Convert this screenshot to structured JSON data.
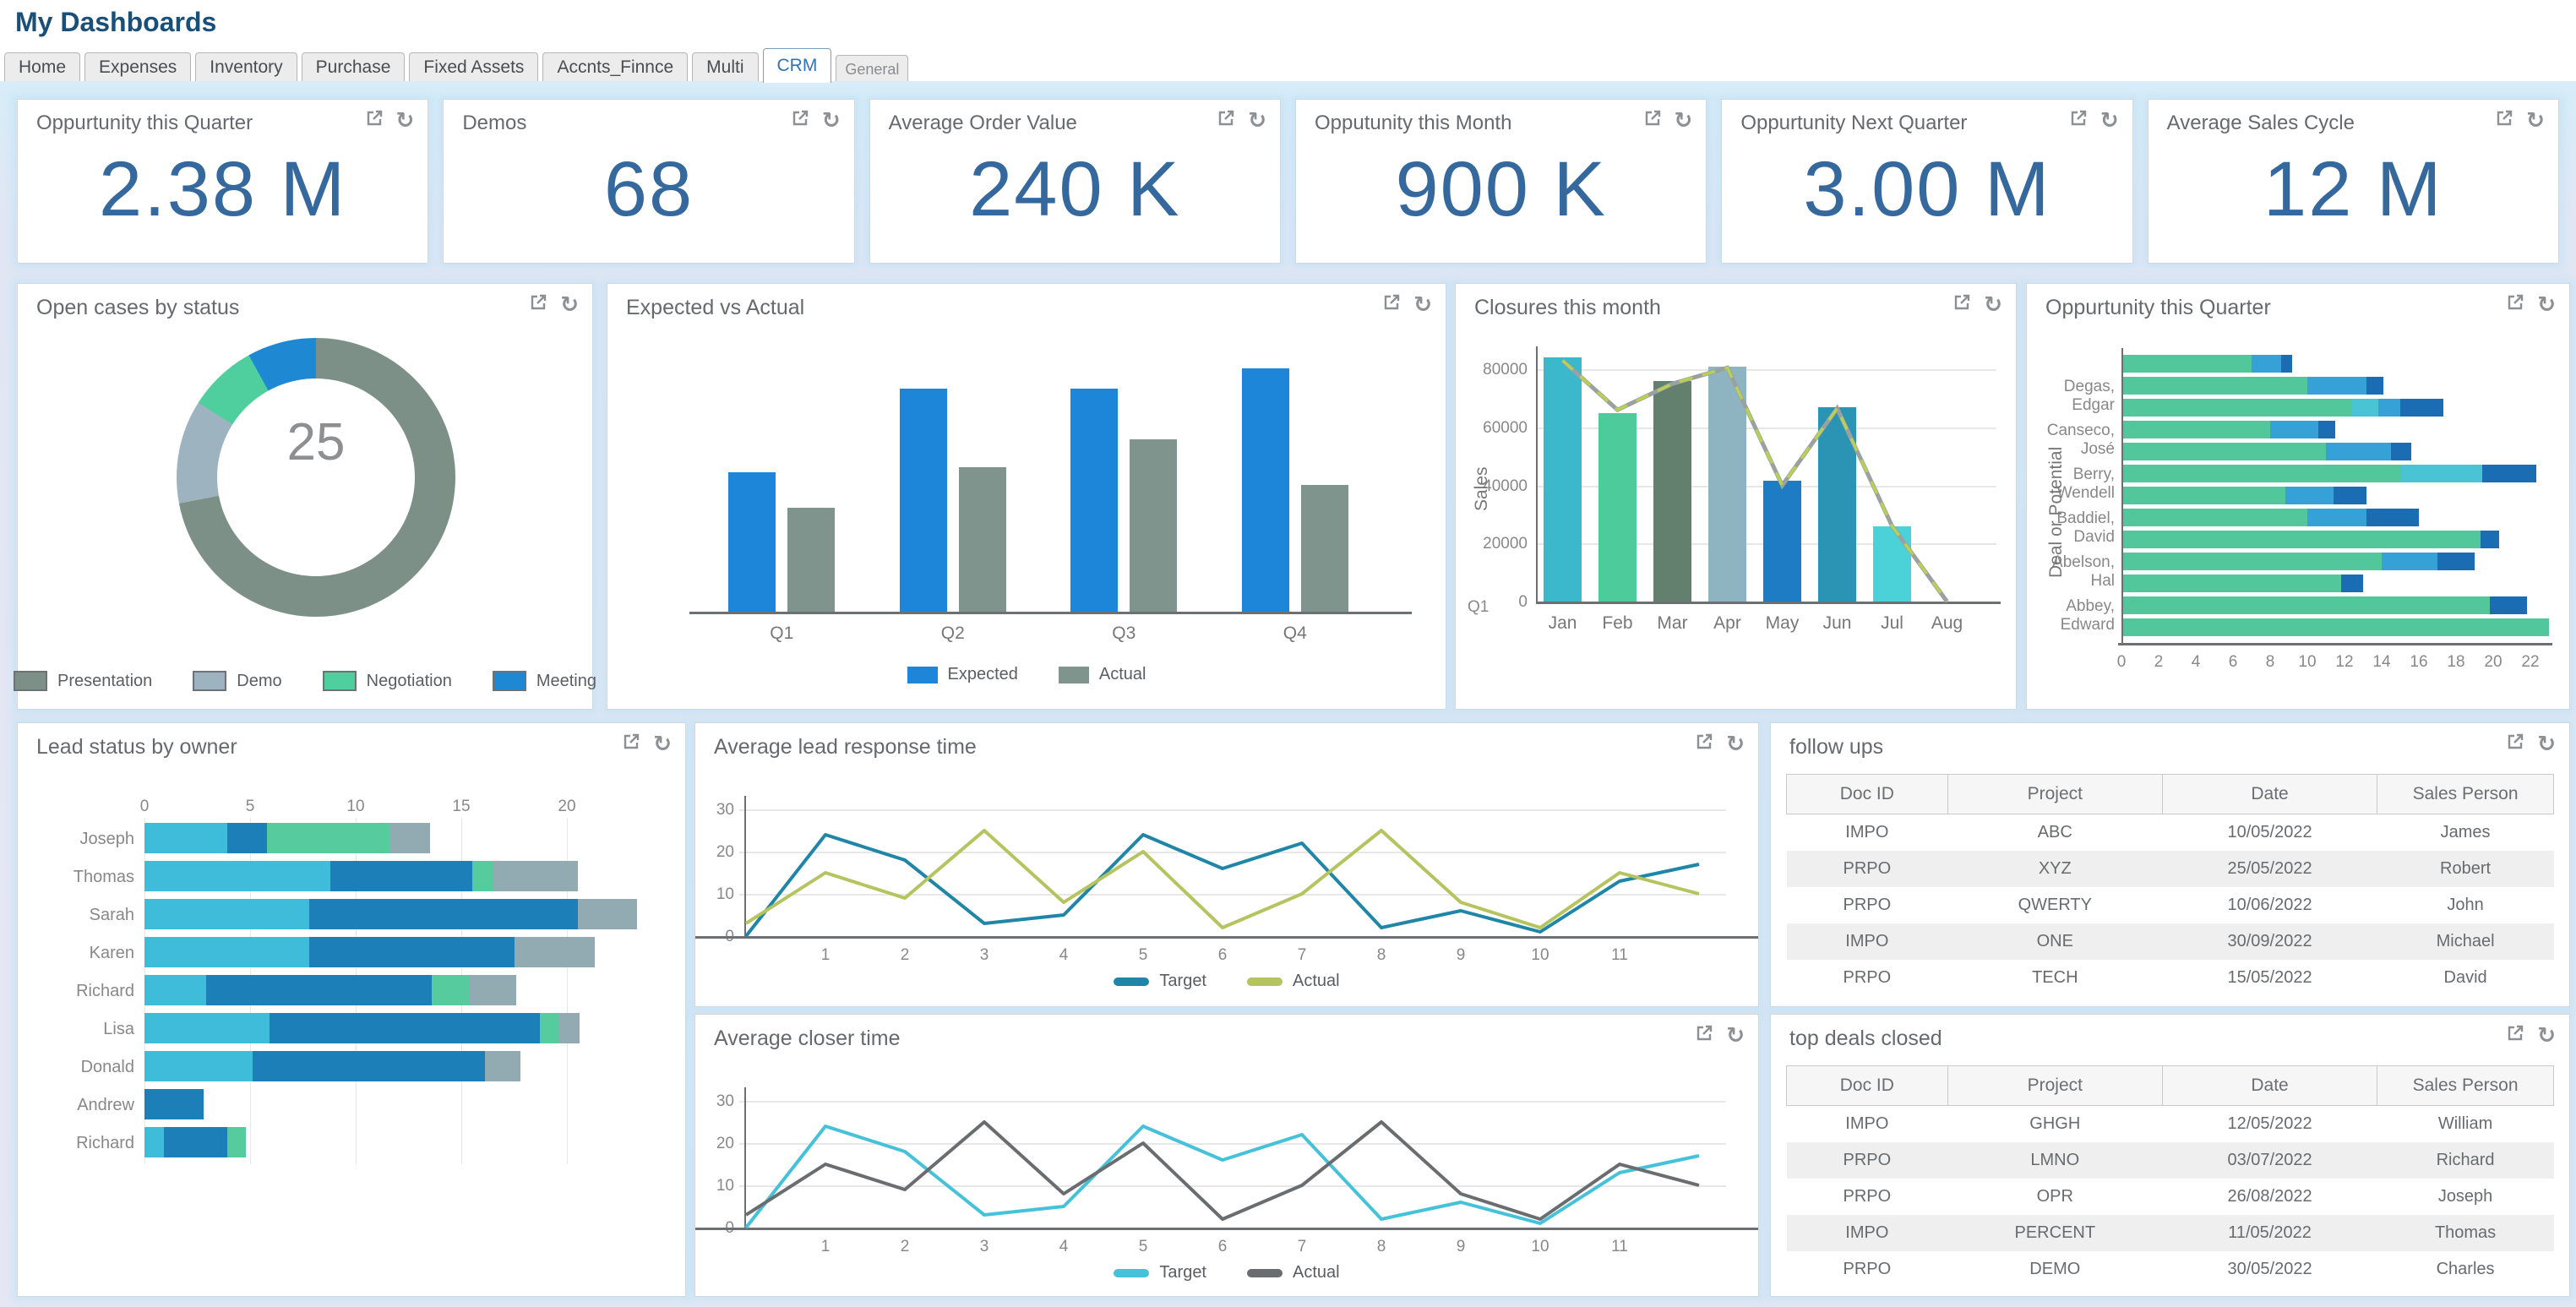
{
  "app": {
    "title": "My Dashboards"
  },
  "tabs": {
    "items": [
      {
        "label": "Home",
        "active": false
      },
      {
        "label": "Expenses",
        "active": false
      },
      {
        "label": "Inventory",
        "active": false
      },
      {
        "label": "Purchase",
        "active": false
      },
      {
        "label": "Fixed Assets",
        "active": false
      },
      {
        "label": "Accnts_Finnce",
        "active": false
      },
      {
        "label": "Multi",
        "active": false
      },
      {
        "label": "CRM",
        "active": true
      },
      {
        "label": "General",
        "active": false,
        "small": true
      }
    ]
  },
  "kpis": [
    {
      "title": "Oppurtunity this Quarter",
      "value": "2.38 M"
    },
    {
      "title": "Demos",
      "value": "68"
    },
    {
      "title": "Average Order Value",
      "value": "240 K"
    },
    {
      "title": "Opputunity this Month",
      "value": "900 K"
    },
    {
      "title": "Oppurtunity Next Quarter",
      "value": "3.00 M"
    },
    {
      "title": "Average Sales Cycle",
      "value": "12 M"
    }
  ],
  "panels": {
    "open_cases": {
      "title": "Open cases by status",
      "center_value": "25",
      "chart_data": {
        "type": "pie",
        "labels": [
          "Presentation",
          "Demo",
          "Negotiation",
          "Meeting"
        ],
        "values": [
          18,
          3,
          2,
          2
        ],
        "colors": [
          "#7c9088",
          "#9db4c0",
          "#4fcf9e",
          "#1e88d2"
        ],
        "total": 25,
        "legend_position": "bottom"
      }
    },
    "expected_vs_actual": {
      "title": "Expected vs Actual",
      "chart_data": {
        "type": "bar",
        "categories": [
          "Q1",
          "Q2",
          "Q3",
          "Q4"
        ],
        "series": [
          {
            "name": "Expected",
            "color": "#1e86d8",
            "values": [
              55,
              88,
              88,
              96
            ]
          },
          {
            "name": "Actual",
            "color": "#7e948c",
            "values": [
              41,
              57,
              68,
              50
            ]
          }
        ],
        "ylim": [
          0,
          100
        ],
        "legend_position": "bottom"
      }
    },
    "closures": {
      "title": "Closures this month",
      "chart_data": {
        "type": "bar+line",
        "categories": [
          "Jan",
          "Feb",
          "Mar",
          "Apr",
          "May",
          "Jun",
          "Jul",
          "Aug"
        ],
        "bar_values": [
          84000,
          65000,
          76000,
          81000,
          41500,
          67000,
          26000,
          0
        ],
        "bar_colors": [
          "#3bb8cb",
          "#4ecb9b",
          "#63806f",
          "#8fb4c1",
          "#1d7cc4",
          "#2b93b3",
          "#4ad2d8",
          "#ffffff"
        ],
        "line_values": [
          83000,
          66000,
          75000,
          80500,
          40000,
          66500,
          26000,
          0
        ],
        "line_color": "#b9cf55",
        "line_under_color": "#9aa1a0",
        "ylabel": "Sales",
        "yticks": [
          0,
          20000,
          40000,
          60000,
          80000
        ],
        "corner_label": "Q1"
      }
    },
    "opp_quarter": {
      "title": "Oppurtunity this Quarter",
      "chart_data": {
        "type": "hbar-stacked",
        "ylabel": "Deal or Potential",
        "xticks": [
          0,
          2,
          4,
          6,
          8,
          10,
          12,
          14,
          16,
          18,
          20,
          22
        ],
        "palette": {
          "g": "#52c79b",
          "b": "#35a1d6",
          "c": "#49c4d4",
          "d": "#1a6db3"
        },
        "row_labels": [
          "",
          "Degas, Edgar",
          "",
          "Canseco, José",
          "",
          "Berry, Wendell",
          "",
          "Baddiel, David",
          "",
          "Abelson, Hal",
          "",
          "Abbey, Edward",
          ""
        ],
        "bars": [
          [
            [
              7,
              "g"
            ],
            [
              1.6,
              "b"
            ],
            [
              0.6,
              "d"
            ]
          ],
          [
            [
              10,
              "g"
            ],
            [
              3.2,
              "b"
            ],
            [
              0.9,
              "d"
            ]
          ],
          [
            [
              12.4,
              "g"
            ],
            [
              1.4,
              "c"
            ],
            [
              1.2,
              "b"
            ],
            [
              2.3,
              "d"
            ]
          ],
          [
            [
              8,
              "g"
            ],
            [
              2.6,
              "b"
            ],
            [
              0.9,
              "d"
            ]
          ],
          [
            [
              11,
              "g"
            ],
            [
              3.5,
              "b"
            ],
            [
              1.1,
              "d"
            ]
          ],
          [
            [
              15,
              "g"
            ],
            [
              4.4,
              "c"
            ],
            [
              2.9,
              "d"
            ]
          ],
          [
            [
              8.8,
              "g"
            ],
            [
              2.6,
              "b"
            ],
            [
              1.8,
              "d"
            ]
          ],
          [
            [
              10,
              "g"
            ],
            [
              3.2,
              "b"
            ],
            [
              2.8,
              "d"
            ]
          ],
          [
            [
              19.3,
              "g"
            ],
            [
              1,
              "d"
            ]
          ],
          [
            [
              14,
              "g"
            ],
            [
              3,
              "b"
            ],
            [
              2,
              "d"
            ]
          ],
          [
            [
              11.8,
              "g"
            ],
            [
              1.2,
              "d"
            ]
          ],
          [
            [
              19.8,
              "g"
            ],
            [
              2,
              "d"
            ]
          ],
          [
            [
              23,
              "g"
            ]
          ]
        ]
      }
    },
    "lead_status": {
      "title": "Lead status by owner",
      "chart_data": {
        "type": "hbar-stacked",
        "xticks": [
          0,
          5,
          10,
          15,
          20
        ],
        "palette": {
          "c": "#3fbcd9",
          "d": "#1c7fb8",
          "g": "#56cb9d",
          "y": "#92aab2"
        },
        "row_labels": [
          "Joseph",
          "Thomas",
          "Sarah",
          "Karen",
          "Richard",
          "Lisa",
          "Donald",
          "Andrew",
          "Richard"
        ],
        "bars": [
          [
            [
              3.9,
              "c"
            ],
            [
              1.9,
              "d"
            ],
            [
              5.8,
              "g"
            ],
            [
              1.9,
              "y"
            ]
          ],
          [
            [
              8.8,
              "c"
            ],
            [
              6.7,
              "d"
            ],
            [
              1.0,
              "g"
            ],
            [
              4.0,
              "y"
            ]
          ],
          [
            [
              7.8,
              "c"
            ],
            [
              12.7,
              "d"
            ],
            [
              2.8,
              "y"
            ]
          ],
          [
            [
              7.8,
              "c"
            ],
            [
              9.7,
              "d"
            ],
            [
              3.8,
              "y"
            ]
          ],
          [
            [
              2.9,
              "c"
            ],
            [
              10.7,
              "d"
            ],
            [
              1.8,
              "g"
            ],
            [
              2.2,
              "y"
            ]
          ],
          [
            [
              5.9,
              "c"
            ],
            [
              12.8,
              "d"
            ],
            [
              0.9,
              "g"
            ],
            [
              1.0,
              "y"
            ]
          ],
          [
            [
              5.1,
              "c"
            ],
            [
              11.0,
              "d"
            ],
            [
              1.7,
              "y"
            ]
          ],
          [
            [
              2.8,
              "d"
            ]
          ],
          [
            [
              0.9,
              "c"
            ],
            [
              3.0,
              "d"
            ],
            [
              0.9,
              "g"
            ]
          ]
        ]
      }
    },
    "avg_lead_response": {
      "title": "Average lead response time",
      "chart_data": {
        "type": "line",
        "x": [
          0,
          1,
          2,
          3,
          4,
          5,
          6,
          7,
          8,
          9,
          10,
          11,
          12
        ],
        "xticks": [
          1,
          2,
          3,
          4,
          5,
          6,
          7,
          8,
          9,
          10,
          11
        ],
        "yticks": [
          0,
          10,
          20,
          30
        ],
        "series": [
          {
            "name": "Target",
            "color": "#1f86a8",
            "values": [
              0,
              24,
              18,
              3,
              5,
              24,
              16,
              22,
              2,
              6,
              1,
              13,
              17
            ]
          },
          {
            "name": "Actual",
            "color": "#b5c45e",
            "values": [
              3,
              15,
              9,
              25,
              8,
              20,
              2,
              10,
              25,
              8,
              2,
              15,
              10
            ]
          }
        ],
        "legend_position": "bottom"
      }
    },
    "avg_closer": {
      "title": "Average closer time",
      "chart_data": {
        "type": "line",
        "x": [
          0,
          1,
          2,
          3,
          4,
          5,
          6,
          7,
          8,
          9,
          10,
          11,
          12
        ],
        "xticks": [
          1,
          2,
          3,
          4,
          5,
          6,
          7,
          8,
          9,
          10,
          11
        ],
        "yticks": [
          0,
          10,
          20,
          30
        ],
        "series": [
          {
            "name": "Target",
            "color": "#45c2da",
            "values": [
              0,
              24,
              18,
              3,
              5,
              24,
              16,
              22,
              2,
              6,
              1,
              13,
              17
            ]
          },
          {
            "name": "Actual",
            "color": "#6a6d6f",
            "values": [
              3,
              15,
              9,
              25,
              8,
              20,
              2,
              10,
              25,
              8,
              2,
              15,
              10
            ]
          }
        ],
        "legend_position": "bottom"
      }
    },
    "follow_ups": {
      "title": "follow ups",
      "columns": [
        "Doc ID",
        "Project",
        "Date",
        "Sales Person"
      ],
      "rows": [
        [
          "IMPO",
          "ABC",
          "10/05/2022",
          "James"
        ],
        [
          "PRPO",
          "XYZ",
          "25/05/2022",
          "Robert"
        ],
        [
          "PRPO",
          "QWERTY",
          "10/06/2022",
          "John"
        ],
        [
          "IMPO",
          "ONE",
          "30/09/2022",
          "Michael"
        ],
        [
          "PRPO",
          "TECH",
          "15/05/2022",
          "David"
        ]
      ]
    },
    "top_deals": {
      "title": "top deals closed",
      "columns": [
        "Doc ID",
        "Project",
        "Date",
        "Sales Person"
      ],
      "rows": [
        [
          "IMPO",
          "GHGH",
          "12/05/2022",
          "William"
        ],
        [
          "PRPO",
          "LMNO",
          "03/07/2022",
          "Richard"
        ],
        [
          "PRPO",
          "OPR",
          "26/08/2022",
          "Joseph"
        ],
        [
          "IMPO",
          "PERCENT",
          "11/05/2022",
          "Thomas"
        ],
        [
          "PRPO",
          "DEMO",
          "30/05/2022",
          "Charles"
        ]
      ]
    }
  }
}
